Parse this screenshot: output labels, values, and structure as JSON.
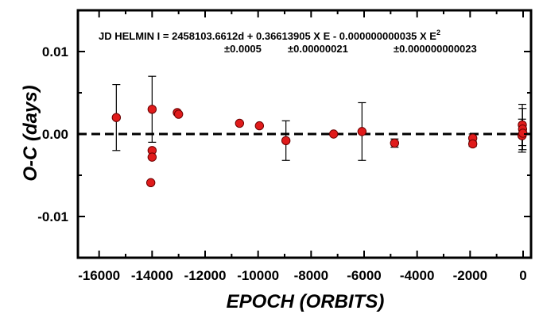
{
  "chart_data": {
    "type": "scatter",
    "xlabel": "EPOCH (ORBITS)",
    "ylabel": "O-C (days)",
    "xlim": [
      -16800,
      300
    ],
    "ylim": [
      -0.015,
      0.015
    ],
    "x_ticks": [
      -16000,
      -14000,
      -12000,
      -10000,
      -8000,
      -6000,
      -4000,
      -2000,
      0
    ],
    "x_tick_labels": [
      "-16000",
      "-14000",
      "-12000",
      "-10000",
      "-8000",
      "-6000",
      "-4000",
      "-2000",
      "0"
    ],
    "y_ticks": [
      -0.01,
      0.0,
      0.01
    ],
    "y_tick_labels": [
      "-0.01",
      "0.00",
      "0.01"
    ],
    "reference_line_y": 0.0,
    "grid": false,
    "equation": {
      "text": "JD HELMIN I = 2458103.6612d +  0.36613905 X E   - 0.000000000035 X E",
      "superscript": "2",
      "err_1": "±0.0005",
      "err_2": "±0.00000021",
      "err_3": "±0.000000000023"
    },
    "points": [
      {
        "x": -15350,
        "y": 0.002,
        "err": 0.004
      },
      {
        "x": -14000,
        "y": 0.003,
        "err": 0.004
      },
      {
        "x": -14000,
        "y": -0.002,
        "err": 0
      },
      {
        "x": -14000,
        "y": -0.0028,
        "err": 0
      },
      {
        "x": -14050,
        "y": -0.0059,
        "err": 0
      },
      {
        "x": -13050,
        "y": 0.0026,
        "err": 0
      },
      {
        "x": -13000,
        "y": 0.0024,
        "err": 0
      },
      {
        "x": -10700,
        "y": 0.0013,
        "err": 0
      },
      {
        "x": -9950,
        "y": 0.001,
        "err": 0
      },
      {
        "x": -8950,
        "y": -0.0008,
        "err": 0.0024
      },
      {
        "x": -7150,
        "y": 0.0,
        "err": 0
      },
      {
        "x": -6080,
        "y": 0.0003,
        "err": 0.0035
      },
      {
        "x": -4850,
        "y": -0.0011,
        "err": 0.0005
      },
      {
        "x": -1900,
        "y": -0.0005,
        "err": 0.0005
      },
      {
        "x": -1900,
        "y": -0.0012,
        "err": 0.0003
      },
      {
        "x": -30,
        "y": 0.0011,
        "err": 0.0025
      },
      {
        "x": -20,
        "y": 0.0006,
        "err": 0.0025
      },
      {
        "x": -40,
        "y": -0.0002,
        "err": 0.002
      },
      {
        "x": -10,
        "y": 0.0001,
        "err": 0
      }
    ],
    "marker_color": "#e01b1b",
    "marker_edge": "#6a0000"
  }
}
